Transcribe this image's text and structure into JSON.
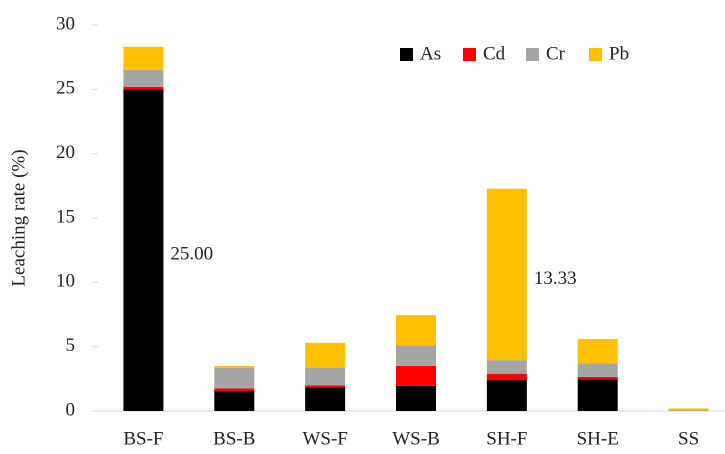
{
  "chart_data": {
    "type": "stacked_bar",
    "y_label": "Leaching rate (%)",
    "categories": [
      "BS-F",
      "BS-B",
      "WS-F",
      "WS-B",
      "SH-F",
      "SH-E",
      "SS"
    ],
    "series": [
      {
        "name": "As",
        "color": "#000000",
        "values": [
          25.0,
          1.55,
          1.85,
          1.95,
          2.4,
          2.45,
          0.02
        ],
        "value_labels": [
          "25.00",
          null,
          null,
          null,
          null,
          null,
          null
        ]
      },
      {
        "name": "Cd",
        "color": "#ff0000",
        "values": [
          0.2,
          0.2,
          0.15,
          1.55,
          0.5,
          0.2,
          0.0
        ]
      },
      {
        "name": "Cr",
        "color": "#a5a5a5",
        "values": [
          1.3,
          1.6,
          1.35,
          1.6,
          1.05,
          1.05,
          0.03
        ]
      },
      {
        "name": "Pb",
        "color": "#ffc000",
        "values": [
          1.8,
          0.15,
          1.95,
          2.35,
          13.33,
          1.9,
          0.15
        ],
        "value_labels": [
          null,
          null,
          null,
          null,
          "13.33",
          null,
          null
        ]
      }
    ],
    "ylim": [
      0,
      30
    ],
    "yticks": [
      0,
      5,
      10,
      15,
      20,
      25,
      30
    ],
    "legend": "top-right"
  }
}
